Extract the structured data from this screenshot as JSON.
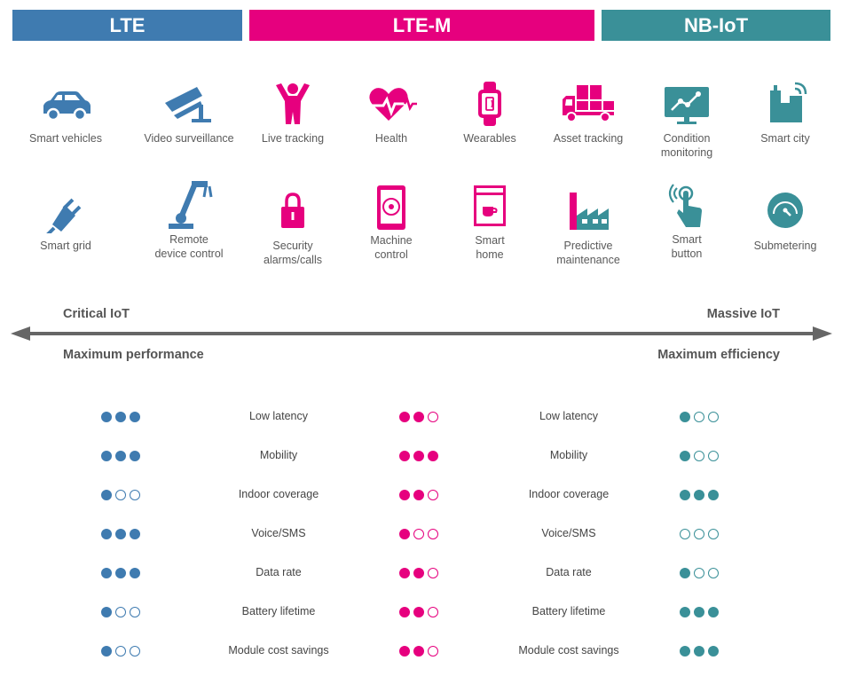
{
  "colors": {
    "lte": "#3f7bb0",
    "ltem": "#e6007e",
    "nbiot": "#3a9098",
    "axis": "#666666"
  },
  "bands": [
    {
      "label": "LTE",
      "color": "#3f7bb0"
    },
    {
      "label": "LTE-M",
      "color": "#e6007e"
    },
    {
      "label": "NB-IoT",
      "color": "#3a9098"
    }
  ],
  "use_cases": [
    {
      "icon": "car-icon",
      "label": "Smart vehicles",
      "color": "#3f7bb0"
    },
    {
      "icon": "camera-icon",
      "label": "Video surveillance",
      "color": "#3f7bb0"
    },
    {
      "icon": "person-icon",
      "label": "Live tracking",
      "color": "#e6007e"
    },
    {
      "icon": "heart-icon",
      "label": "Health",
      "color": "#e6007e"
    },
    {
      "icon": "watch-icon",
      "label": "Wearables",
      "color": "#e6007e"
    },
    {
      "icon": "truck-icon",
      "label": "Asset tracking",
      "color": "#e6007e"
    },
    {
      "icon": "monitor-icon",
      "label": "Condition\nmonitoring",
      "color": "#3a9098"
    },
    {
      "icon": "city-icon",
      "label": "Smart city",
      "color": "#3a9098"
    },
    {
      "icon": "plug-icon",
      "label": "Smart grid",
      "color": "#3f7bb0"
    },
    {
      "icon": "robot-arm-icon",
      "label": "Remote\ndevice control",
      "color": "#3f7bb0"
    },
    {
      "icon": "lock-icon",
      "label": "Security\nalarms/calls",
      "color": "#e6007e"
    },
    {
      "icon": "tablet-icon",
      "label": "Machine\ncontrol",
      "color": "#e6007e"
    },
    {
      "icon": "appliance-icon",
      "label": "Smart\nhome",
      "color": "#e6007e"
    },
    {
      "icon": "factory-icon",
      "label": "Predictive\nmaintenance",
      "color": "#e6007e"
    },
    {
      "icon": "touch-icon",
      "label": "Smart\nbutton",
      "color": "#3a9098"
    },
    {
      "icon": "gauge-icon",
      "label": "Submetering",
      "color": "#3a9098"
    }
  ],
  "axis": {
    "left_top": "Critical IoT",
    "left_bottom": "Maximum performance",
    "right_top": "Massive IoT",
    "right_bottom": "Maximum efficiency"
  },
  "features": [
    "Low latency",
    "Mobility",
    "Indoor coverage",
    "Voice/SMS",
    "Data rate",
    "Battery lifetime",
    "Module cost savings"
  ],
  "ratings": {
    "lte": [
      3,
      3,
      1,
      3,
      3,
      1,
      1
    ],
    "ltem": [
      2,
      3,
      2,
      1,
      2,
      2,
      2
    ],
    "nbiot": [
      1,
      1,
      3,
      0,
      1,
      3,
      3
    ]
  }
}
